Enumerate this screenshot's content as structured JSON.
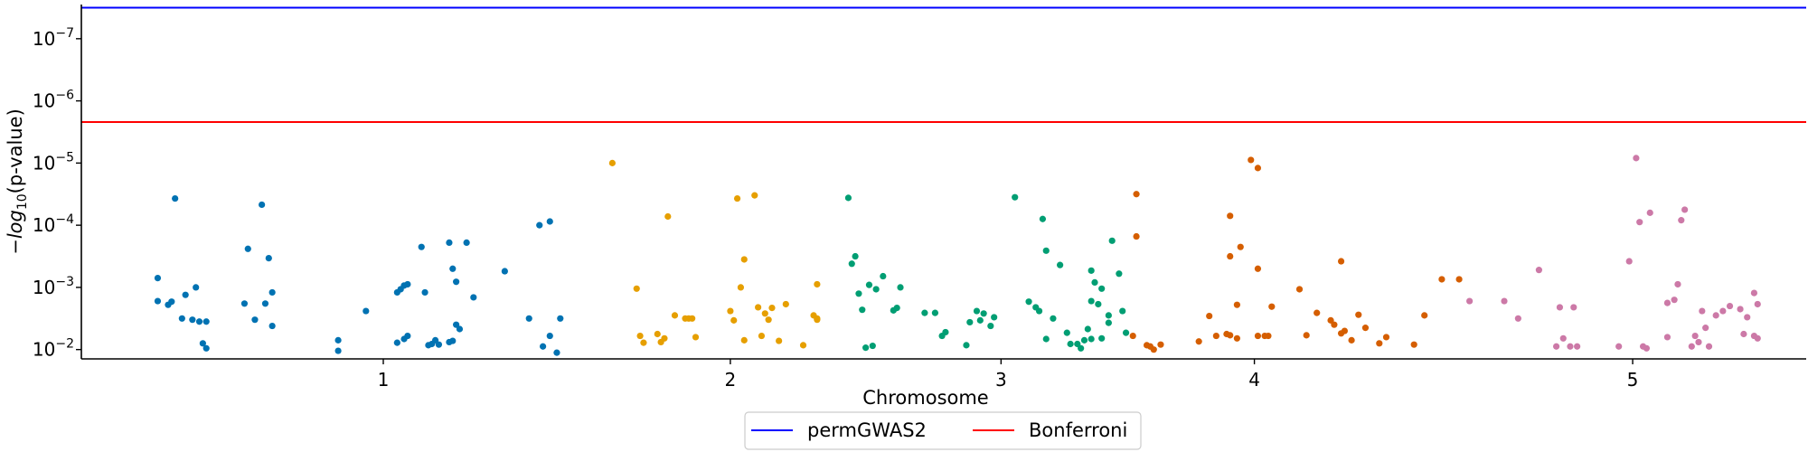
{
  "chart_data": {
    "type": "scatter",
    "xlabel": "Chromosome",
    "ylabel": "−log10(p-value)",
    "y_scale": "log",
    "ylim_neglog10": [
      1.85,
      7.55
    ],
    "x_ticks": [
      {
        "label": "1",
        "x": 1.0
      },
      {
        "label": "2",
        "x": 2.0
      },
      {
        "label": "3",
        "x": 2.78
      },
      {
        "label": "4",
        "x": 3.51
      },
      {
        "label": "5",
        "x": 4.6
      }
    ],
    "xlim": [
      0.13,
      5.1
    ],
    "y_ticks": [
      {
        "base": "10",
        "exp": "−7",
        "neglog10": 7
      },
      {
        "base": "10",
        "exp": "−6",
        "neglog10": 6
      },
      {
        "base": "10",
        "exp": "−5",
        "neglog10": 5
      },
      {
        "base": "10",
        "exp": "−4",
        "neglog10": 4
      },
      {
        "base": "10",
        "exp": "−3",
        "neglog10": 3
      },
      {
        "base": "10",
        "exp": "−2",
        "neglog10": 2
      }
    ],
    "thresholds": [
      {
        "name": "permGWAS2",
        "color": "#0000ff",
        "neglog10": 7.5
      },
      {
        "name": "Bonferroni",
        "color": "#ff0000",
        "neglog10": 5.66
      }
    ],
    "legend": {
      "position": "bottom-center",
      "columns": 2
    },
    "spines": {
      "top": false,
      "right": false
    },
    "grid": false,
    "series": [
      {
        "chromosome": "1",
        "color": "#0072b2",
        "points": [
          [
            0.35,
            3.15
          ],
          [
            0.35,
            2.78
          ],
          [
            0.38,
            2.72
          ],
          [
            0.39,
            2.77
          ],
          [
            0.4,
            4.43
          ],
          [
            0.42,
            2.5
          ],
          [
            0.43,
            2.88
          ],
          [
            0.45,
            2.48
          ],
          [
            0.46,
            3.0
          ],
          [
            0.47,
            2.45
          ],
          [
            0.48,
            2.1
          ],
          [
            0.49,
            2.02
          ],
          [
            0.49,
            2.45
          ],
          [
            0.6,
            2.74
          ],
          [
            0.61,
            3.62
          ],
          [
            0.63,
            2.48
          ],
          [
            0.65,
            4.33
          ],
          [
            0.66,
            2.74
          ],
          [
            0.67,
            3.47
          ],
          [
            0.68,
            2.38
          ],
          [
            0.68,
            2.92
          ],
          [
            0.87,
            2.15
          ],
          [
            0.87,
            1.98
          ],
          [
            0.95,
            2.62
          ],
          [
            1.04,
            2.11
          ],
          [
            1.04,
            2.92
          ],
          [
            1.05,
            2.97
          ],
          [
            1.06,
            3.03
          ],
          [
            1.06,
            2.17
          ],
          [
            1.07,
            3.05
          ],
          [
            1.07,
            2.22
          ],
          [
            1.11,
            3.65
          ],
          [
            1.12,
            2.92
          ],
          [
            1.13,
            2.07
          ],
          [
            1.14,
            2.09
          ],
          [
            1.15,
            2.15
          ],
          [
            1.16,
            2.08
          ],
          [
            1.19,
            2.12
          ],
          [
            1.19,
            3.72
          ],
          [
            1.2,
            3.3
          ],
          [
            1.2,
            2.14
          ],
          [
            1.21,
            2.4
          ],
          [
            1.21,
            3.09
          ],
          [
            1.22,
            2.33
          ],
          [
            1.24,
            3.72
          ],
          [
            1.26,
            2.84
          ],
          [
            1.35,
            3.26
          ],
          [
            1.42,
            2.5
          ],
          [
            1.45,
            4.0
          ],
          [
            1.46,
            2.05
          ],
          [
            1.48,
            2.22
          ],
          [
            1.48,
            4.06
          ],
          [
            1.5,
            1.95
          ],
          [
            1.51,
            2.5
          ]
        ]
      },
      {
        "chromosome": "2",
        "color": "#e69f00",
        "points": [
          [
            1.66,
            5.0
          ],
          [
            1.73,
            2.98
          ],
          [
            1.74,
            2.22
          ],
          [
            1.75,
            2.11
          ],
          [
            1.79,
            2.25
          ],
          [
            1.8,
            2.12
          ],
          [
            1.81,
            2.18
          ],
          [
            1.82,
            4.14
          ],
          [
            1.84,
            2.55
          ],
          [
            1.87,
            2.5
          ],
          [
            1.88,
            2.5
          ],
          [
            1.89,
            2.5
          ],
          [
            1.9,
            2.2
          ],
          [
            2.0,
            2.62
          ],
          [
            2.01,
            2.47
          ],
          [
            2.02,
            4.43
          ],
          [
            2.03,
            3.0
          ],
          [
            2.04,
            2.15
          ],
          [
            2.04,
            3.45
          ],
          [
            2.07,
            4.48
          ],
          [
            2.08,
            2.68
          ],
          [
            2.09,
            2.22
          ],
          [
            2.1,
            2.58
          ],
          [
            2.11,
            2.48
          ],
          [
            2.12,
            2.67
          ],
          [
            2.14,
            2.14
          ],
          [
            2.16,
            2.73
          ],
          [
            2.21,
            2.07
          ],
          [
            2.24,
            2.55
          ],
          [
            2.25,
            3.05
          ],
          [
            2.25,
            2.5
          ],
          [
            2.25,
            2.48
          ]
        ]
      },
      {
        "chromosome": "3",
        "color": "#009e73",
        "points": [
          [
            2.34,
            4.44
          ],
          [
            2.35,
            3.38
          ],
          [
            2.36,
            3.5
          ],
          [
            2.37,
            2.9
          ],
          [
            2.38,
            2.64
          ],
          [
            2.39,
            2.03
          ],
          [
            2.4,
            3.04
          ],
          [
            2.41,
            2.06
          ],
          [
            2.42,
            2.97
          ],
          [
            2.44,
            3.18
          ],
          [
            2.47,
            2.63
          ],
          [
            2.48,
            2.67
          ],
          [
            2.49,
            3.0
          ],
          [
            2.56,
            2.59
          ],
          [
            2.59,
            2.59
          ],
          [
            2.61,
            2.22
          ],
          [
            2.62,
            2.28
          ],
          [
            2.68,
            2.07
          ],
          [
            2.69,
            2.44
          ],
          [
            2.71,
            2.62
          ],
          [
            2.72,
            2.47
          ],
          [
            2.73,
            2.58
          ],
          [
            2.75,
            2.38
          ],
          [
            2.76,
            2.52
          ],
          [
            2.82,
            4.45
          ],
          [
            2.86,
            2.77
          ],
          [
            2.88,
            2.68
          ],
          [
            2.89,
            2.62
          ],
          [
            2.9,
            4.1
          ],
          [
            2.91,
            3.59
          ],
          [
            2.91,
            2.17
          ],
          [
            2.93,
            2.5
          ],
          [
            2.95,
            3.36
          ],
          [
            2.97,
            2.27
          ],
          [
            2.98,
            2.09
          ],
          [
            3.0,
            2.09
          ],
          [
            3.01,
            2.02
          ],
          [
            3.02,
            2.15
          ],
          [
            3.03,
            2.33
          ],
          [
            3.04,
            3.27
          ],
          [
            3.04,
            2.17
          ],
          [
            3.04,
            2.78
          ],
          [
            3.05,
            3.08
          ],
          [
            3.06,
            2.73
          ],
          [
            3.07,
            2.18
          ],
          [
            3.07,
            2.98
          ],
          [
            3.09,
            2.55
          ],
          [
            3.09,
            2.43
          ],
          [
            3.1,
            3.75
          ],
          [
            3.12,
            3.22
          ],
          [
            3.13,
            2.62
          ],
          [
            3.14,
            2.27
          ]
        ]
      },
      {
        "chromosome": "4",
        "color": "#d55e00",
        "points": [
          [
            3.16,
            2.22
          ],
          [
            3.17,
            4.5
          ],
          [
            3.17,
            3.82
          ],
          [
            3.2,
            2.07
          ],
          [
            3.21,
            2.05
          ],
          [
            3.22,
            2.0
          ],
          [
            3.24,
            2.08
          ],
          [
            3.35,
            2.13
          ],
          [
            3.38,
            2.54
          ],
          [
            3.4,
            2.22
          ],
          [
            3.43,
            2.25
          ],
          [
            3.44,
            3.5
          ],
          [
            3.44,
            4.15
          ],
          [
            3.44,
            2.23
          ],
          [
            3.46,
            2.18
          ],
          [
            3.46,
            2.72
          ],
          [
            3.47,
            3.65
          ],
          [
            3.5,
            5.05
          ],
          [
            3.52,
            4.92
          ],
          [
            3.52,
            3.3
          ],
          [
            3.52,
            2.22
          ],
          [
            3.54,
            2.22
          ],
          [
            3.55,
            2.22
          ],
          [
            3.56,
            2.69
          ],
          [
            3.64,
            2.97
          ],
          [
            3.66,
            2.23
          ],
          [
            3.69,
            2.59
          ],
          [
            3.73,
            2.47
          ],
          [
            3.74,
            2.4
          ],
          [
            3.76,
            3.42
          ],
          [
            3.76,
            2.26
          ],
          [
            3.77,
            2.3
          ],
          [
            3.79,
            2.15
          ],
          [
            3.81,
            2.56
          ],
          [
            3.83,
            2.35
          ],
          [
            3.87,
            2.1
          ],
          [
            3.89,
            2.2
          ],
          [
            3.97,
            2.08
          ],
          [
            4.0,
            2.55
          ],
          [
            4.05,
            3.13
          ],
          [
            4.1,
            3.13
          ]
        ]
      },
      {
        "chromosome": "5",
        "color": "#cc79a7",
        "points": [
          [
            4.13,
            2.78
          ],
          [
            4.23,
            2.78
          ],
          [
            4.27,
            2.5
          ],
          [
            4.33,
            3.28
          ],
          [
            4.38,
            2.05
          ],
          [
            4.39,
            2.68
          ],
          [
            4.4,
            2.18
          ],
          [
            4.42,
            2.05
          ],
          [
            4.43,
            2.68
          ],
          [
            4.44,
            2.05
          ],
          [
            4.56,
            2.05
          ],
          [
            4.59,
            3.42
          ],
          [
            4.61,
            5.08
          ],
          [
            4.62,
            4.05
          ],
          [
            4.63,
            2.05
          ],
          [
            4.64,
            2.02
          ],
          [
            4.65,
            4.2
          ],
          [
            4.7,
            2.2
          ],
          [
            4.7,
            2.75
          ],
          [
            4.72,
            2.8
          ],
          [
            4.73,
            3.05
          ],
          [
            4.74,
            4.08
          ],
          [
            4.75,
            4.25
          ],
          [
            4.77,
            2.05
          ],
          [
            4.78,
            2.22
          ],
          [
            4.79,
            2.12
          ],
          [
            4.8,
            2.62
          ],
          [
            4.81,
            2.35
          ],
          [
            4.82,
            2.05
          ],
          [
            4.84,
            2.55
          ],
          [
            4.86,
            2.62
          ],
          [
            4.88,
            2.7
          ],
          [
            4.91,
            2.65
          ],
          [
            4.92,
            2.25
          ],
          [
            4.93,
            2.52
          ],
          [
            4.95,
            2.22
          ],
          [
            4.95,
            2.91
          ],
          [
            4.96,
            2.18
          ],
          [
            4.96,
            2.73
          ]
        ]
      }
    ]
  }
}
